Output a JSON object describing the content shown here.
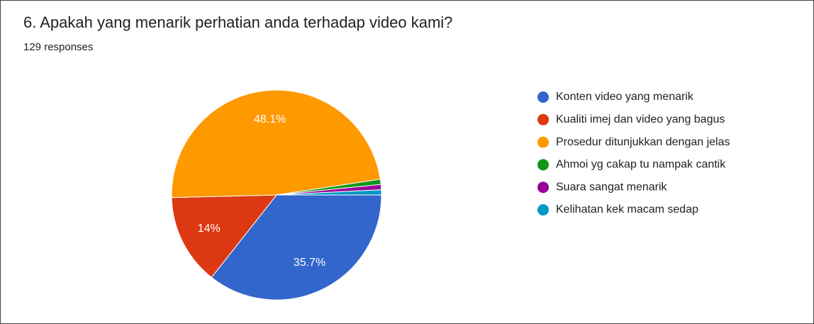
{
  "chart_data": {
    "type": "pie",
    "title": "6. Apakah yang menarik perhatian anda terhadap video kami?",
    "subtitle": "129 responses",
    "categories": [
      "Konten video yang menarik",
      "Kualiti imej dan video yang bagus",
      "Prosedur ditunjukkan dengan jelas",
      "Ahmoi yg cakap tu nampak cantik",
      "Suara sangat menarik",
      "Kelihatan kek macam sedap"
    ],
    "values": [
      35.7,
      14,
      48.1,
      0.8,
      0.8,
      0.8
    ],
    "value_labels": [
      "35.7%",
      "14%",
      "48.1%",
      null,
      null,
      null
    ],
    "colors": [
      "#3366cc",
      "#dc3912",
      "#ff9900",
      "#109618",
      "#990099",
      "#0099c6"
    ],
    "legend": "right"
  }
}
